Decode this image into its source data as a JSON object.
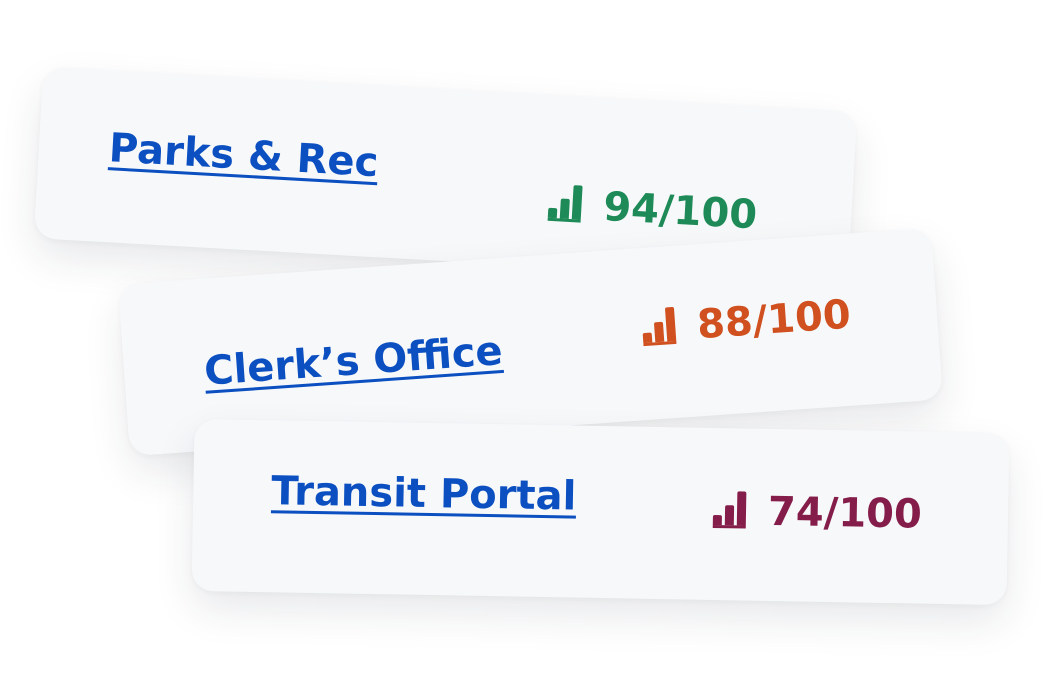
{
  "cards": [
    {
      "name": "Parks & Rec",
      "score": "94/100",
      "color": "#1e8a57",
      "icon": "signal-bars-icon"
    },
    {
      "name": "Clerk’s Office",
      "score": "88/100",
      "color": "#d0501f",
      "icon": "signal-bars-icon"
    },
    {
      "name": "Transit Portal",
      "score": "74/100",
      "color": "#851d4a",
      "icon": "signal-bars-icon"
    }
  ]
}
